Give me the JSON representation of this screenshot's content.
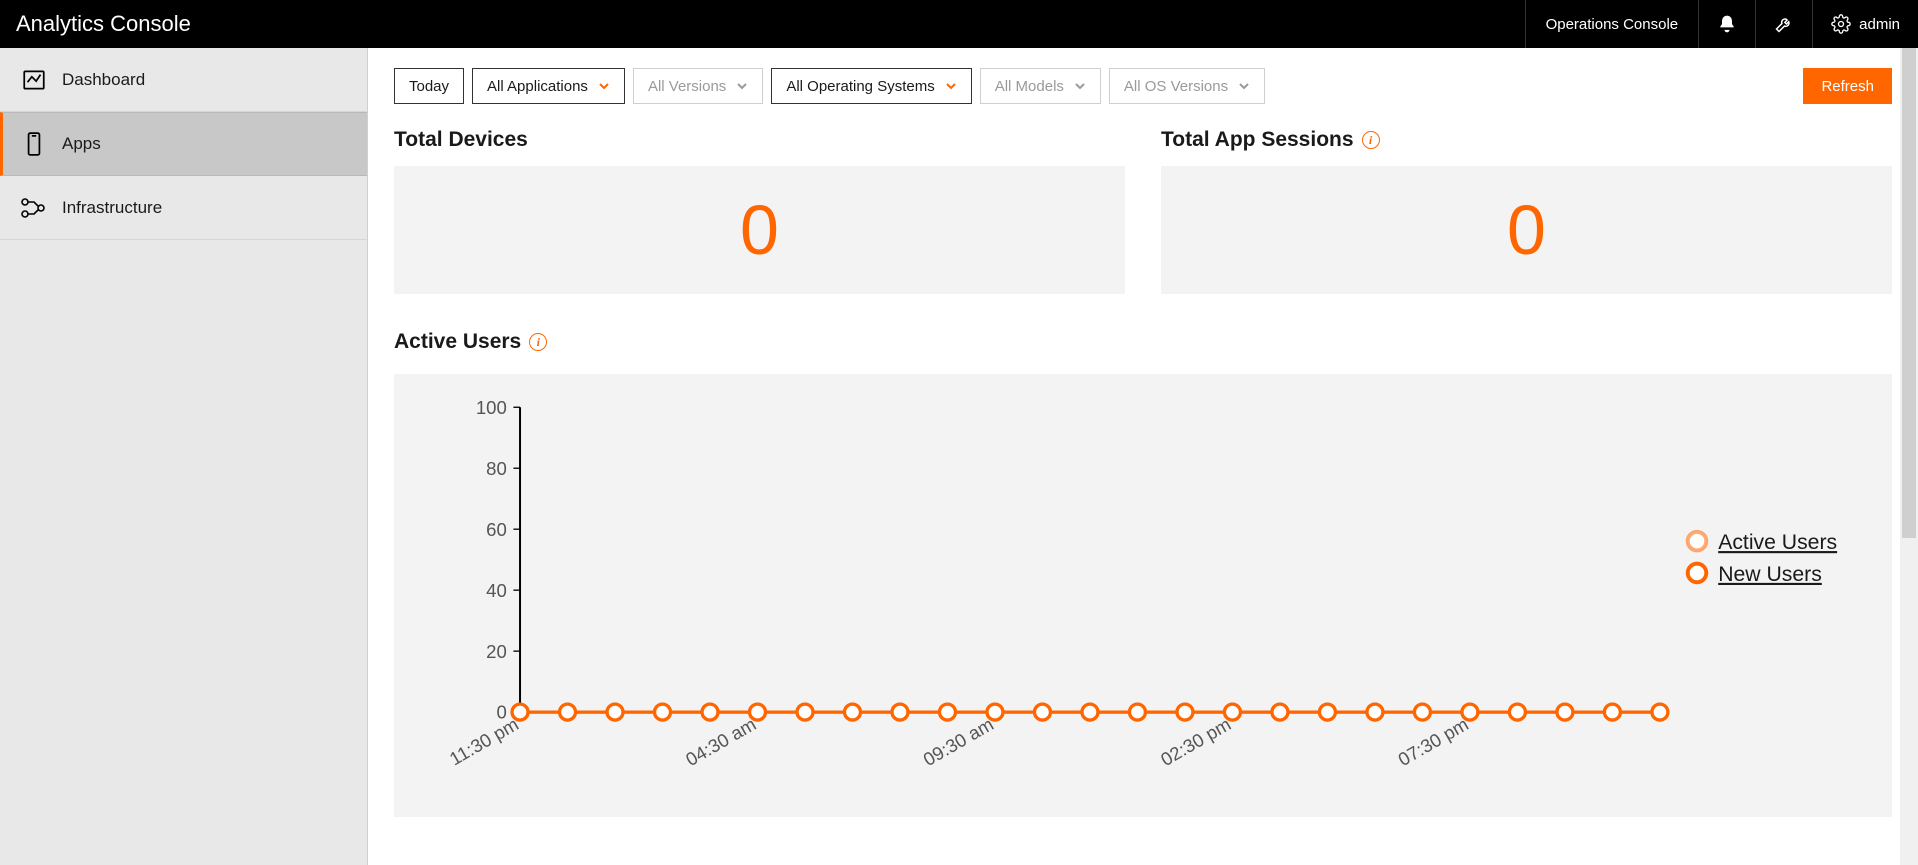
{
  "header": {
    "title": "Analytics Console",
    "operations_link": "Operations Console",
    "admin_label": "admin"
  },
  "sidebar": {
    "items": [
      {
        "id": "dashboard",
        "label": "Dashboard",
        "active": false
      },
      {
        "id": "apps",
        "label": "Apps",
        "active": true
      },
      {
        "id": "infrastructure",
        "label": "Infrastructure",
        "active": false
      }
    ]
  },
  "filters": {
    "today": {
      "label": "Today",
      "enabled": true,
      "chevron": false
    },
    "applications": {
      "label": "All Applications",
      "enabled": true,
      "chevron": true,
      "chevron_color": "#ff6600"
    },
    "versions": {
      "label": "All Versions",
      "enabled": false,
      "chevron": true,
      "chevron_color": "#9a9a9a"
    },
    "os": {
      "label": "All Operating Systems",
      "enabled": true,
      "chevron": true,
      "chevron_color": "#ff6600"
    },
    "models": {
      "label": "All Models",
      "enabled": false,
      "chevron": true,
      "chevron_color": "#9a9a9a"
    },
    "os_versions": {
      "label": "All OS Versions",
      "enabled": false,
      "chevron": true,
      "chevron_color": "#9a9a9a"
    },
    "refresh": "Refresh"
  },
  "metrics": {
    "total_devices": {
      "title": "Total Devices",
      "value": "0",
      "info": false
    },
    "total_sessions": {
      "title": "Total App Sessions",
      "value": "0",
      "info": true
    }
  },
  "chart": {
    "title": "Active Users",
    "info": true,
    "type": "line",
    "background_color": "#f3f3f3",
    "axis_color": "#000000",
    "label_color": "#555555",
    "label_fontsize": 14,
    "ylim": [
      0,
      100
    ],
    "ytick_step": 20,
    "ytick_values": [
      0,
      20,
      40,
      60,
      80,
      100
    ],
    "x_labels_visible": [
      "11:30 pm",
      "04:30 am",
      "09:30 am",
      "02:30 pm",
      "07:30 pm"
    ],
    "x_label_every": 5,
    "n_points": 25,
    "series": [
      {
        "name": "Active Users",
        "legend_label": "Active Users",
        "stroke": "#ff6600",
        "marker_fill": "#ffffff",
        "marker_stroke": "#ff6600",
        "marker_opacity": 0.55,
        "marker_radius": 6,
        "line_width": 2.5,
        "values": [
          0,
          0,
          0,
          0,
          0,
          0,
          0,
          0,
          0,
          0,
          0,
          0,
          0,
          0,
          0,
          0,
          0,
          0,
          0,
          0,
          0,
          0,
          0,
          0,
          0
        ]
      },
      {
        "name": "New Users",
        "legend_label": "New Users",
        "stroke": "#ff6600",
        "marker_fill": "#ffffff",
        "marker_stroke": "#ff6600",
        "marker_opacity": 1.0,
        "marker_radius": 6,
        "line_width": 2.5,
        "values": [
          0,
          0,
          0,
          0,
          0,
          0,
          0,
          0,
          0,
          0,
          0,
          0,
          0,
          0,
          0,
          0,
          0,
          0,
          0,
          0,
          0,
          0,
          0,
          0,
          0
        ]
      }
    ],
    "legend": {
      "position": "right",
      "underline": true,
      "text_color": "#1a1a1a",
      "fontsize": 16
    }
  },
  "colors": {
    "accent": "#ff6600",
    "header_bg": "#000000",
    "sidebar_bg": "#e8e8e8",
    "sidebar_active_bg": "#c8c8c8",
    "card_bg": "#f3f3f3"
  }
}
